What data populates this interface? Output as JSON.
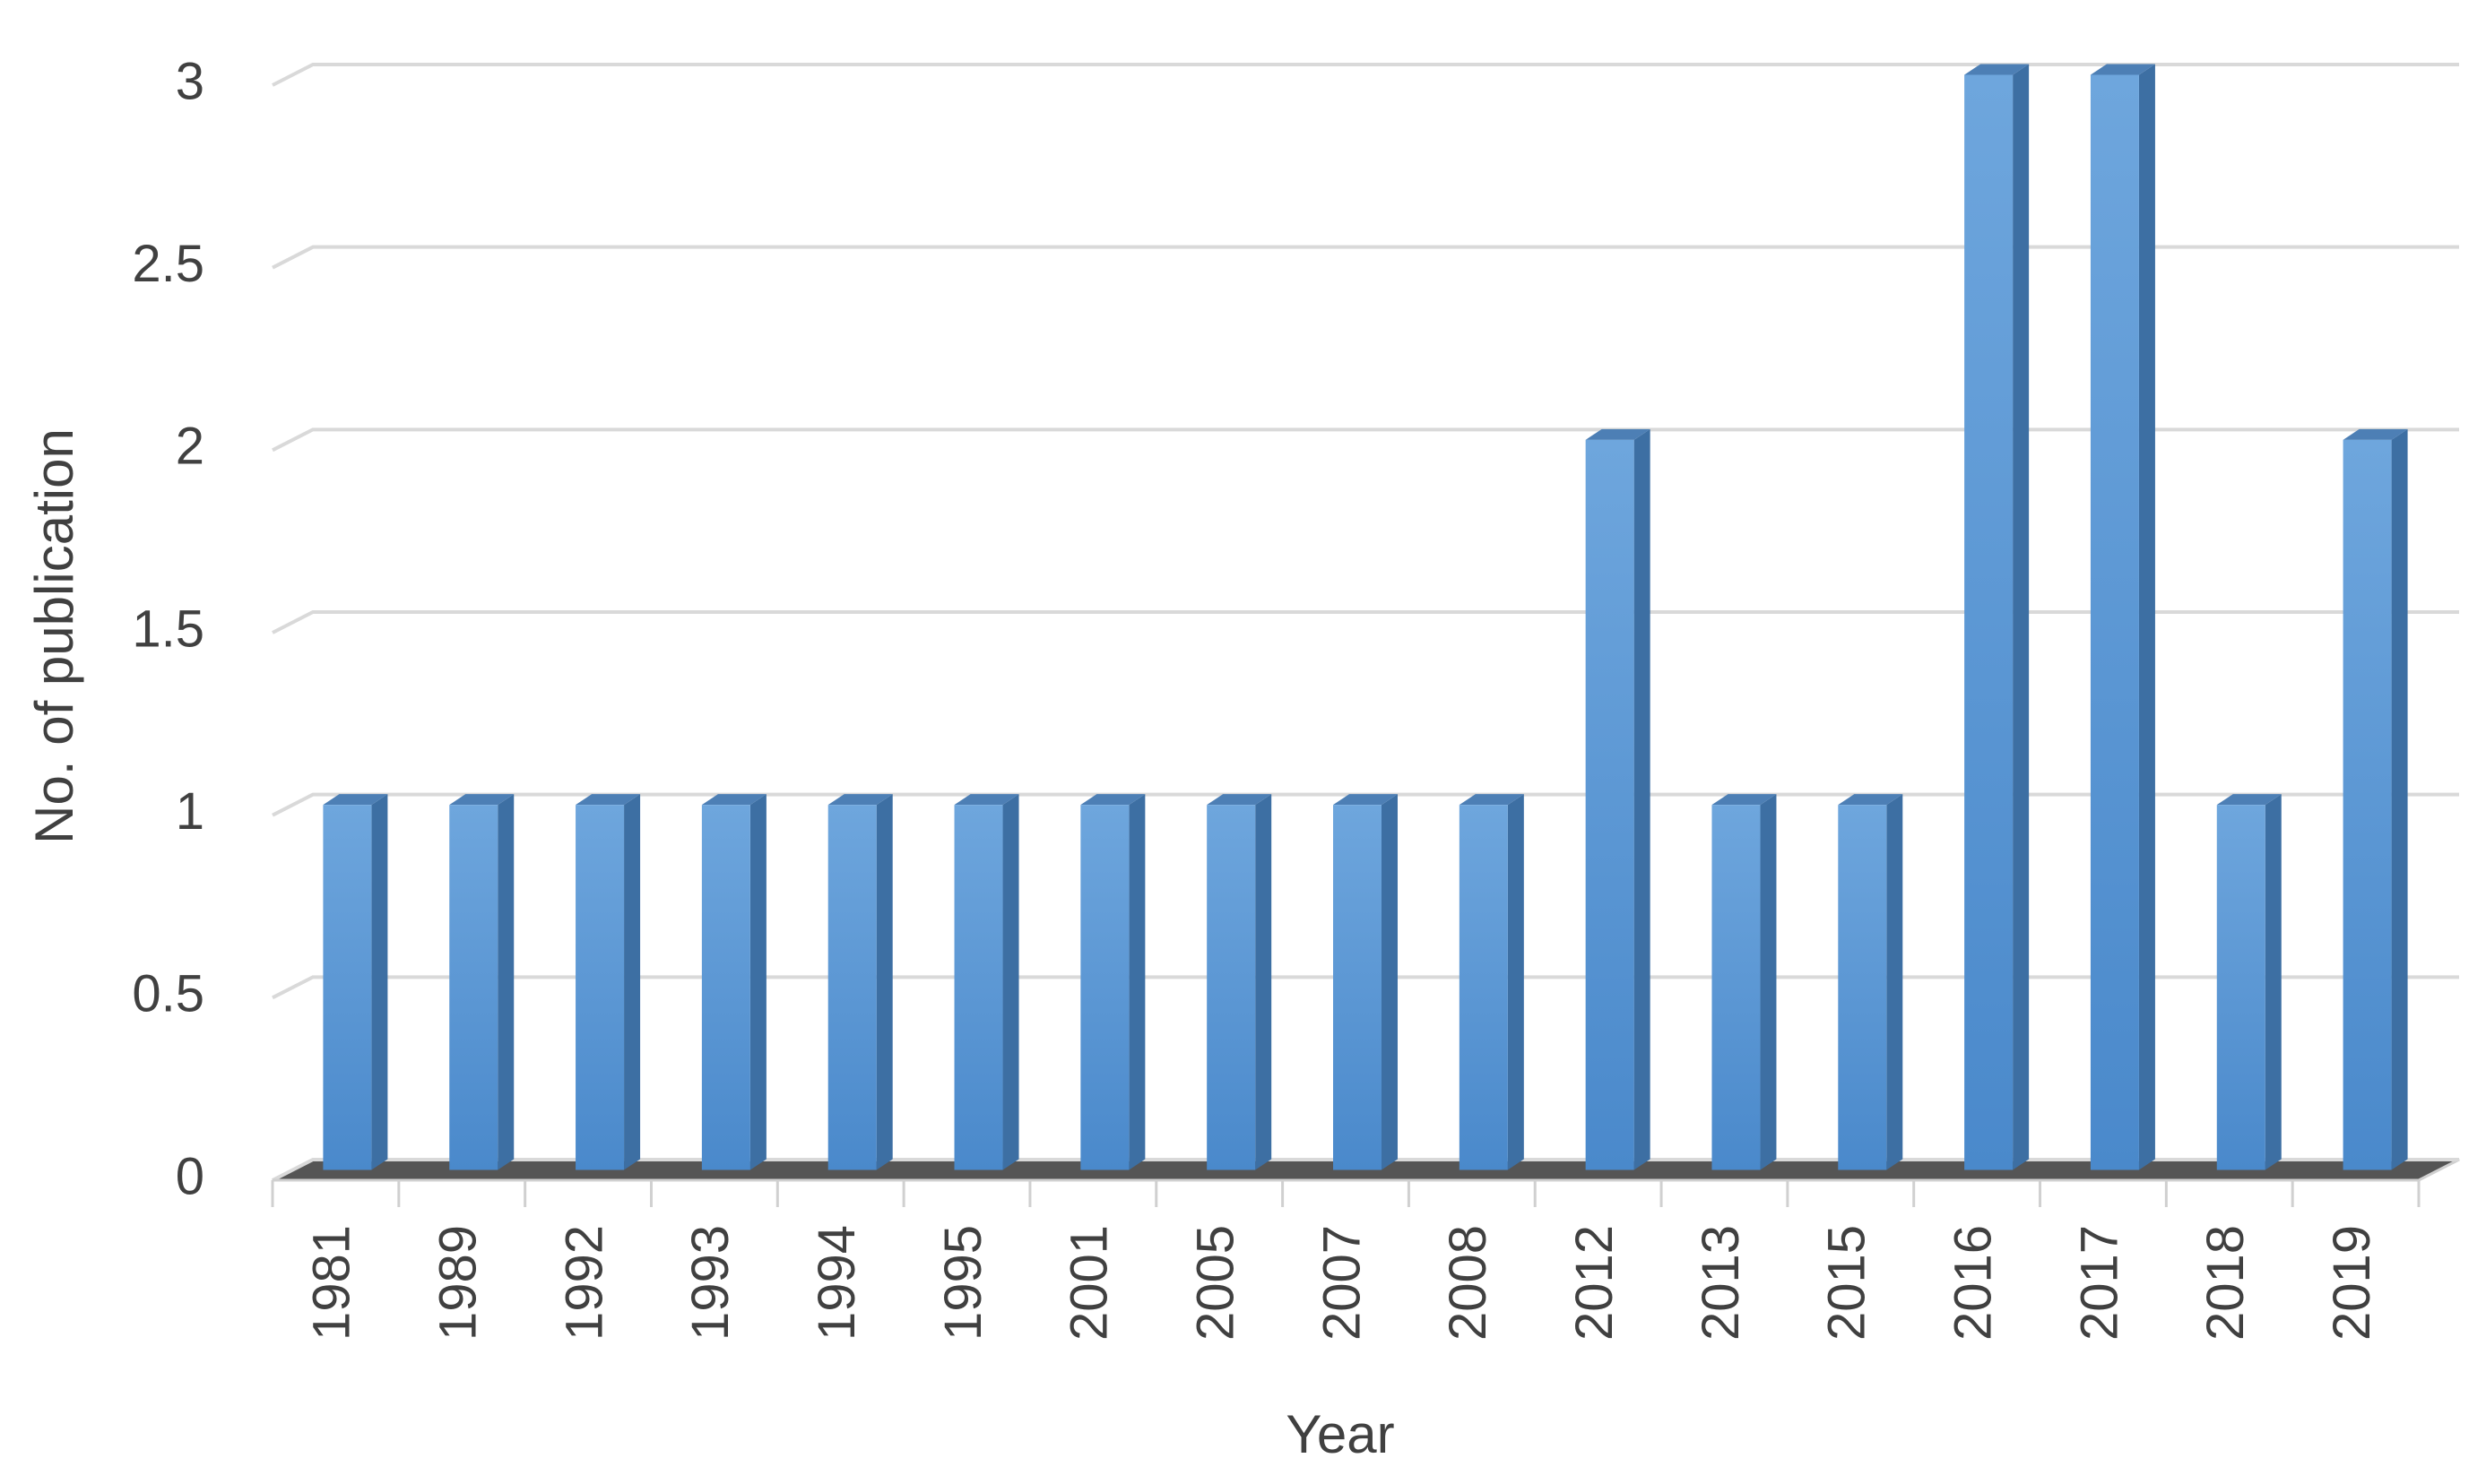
{
  "chart_data": {
    "type": "bar3d",
    "x_label": "Year",
    "y_label": "No. of publication",
    "categories": [
      "1981",
      "1989",
      "1992",
      "1993",
      "1994",
      "1995",
      "2001",
      "2005",
      "2007",
      "2008",
      "2012",
      "2013",
      "2015",
      "2016",
      "2017",
      "2018",
      "2019"
    ],
    "values": [
      1,
      1,
      1,
      1,
      1,
      1,
      1,
      1,
      1,
      1,
      2,
      1,
      1,
      3,
      3,
      1,
      2
    ],
    "color": "#5b9bd5",
    "ylim": [
      0,
      3
    ],
    "yticks": [
      0,
      0.5,
      1,
      1.5,
      2,
      2.5,
      3
    ],
    "grid": true
  }
}
